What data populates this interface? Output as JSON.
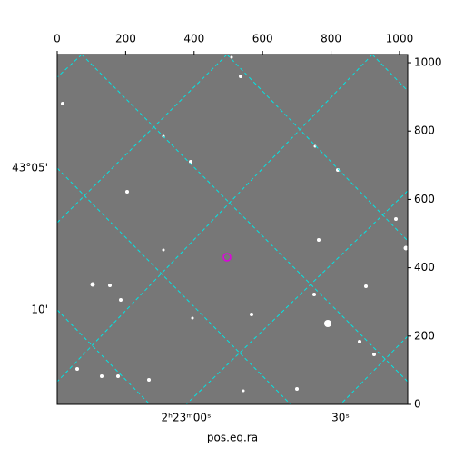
{
  "chart_data": {
    "type": "image",
    "xlabel": "pos.eq.ra",
    "xlim": [
      0,
      1024
    ],
    "xticks": [
      0,
      200,
      400,
      600,
      800,
      1000
    ],
    "ylim": [
      0,
      1024
    ],
    "yticks": [
      0,
      200,
      400,
      600,
      800,
      1000
    ],
    "ra_labels": [
      "2ʰ23ᵐ00ˢ",
      "30ˢ"
    ],
    "dec_labels": [
      "43°05'",
      "10'"
    ],
    "grid_color": "#00e5e5"
  }
}
